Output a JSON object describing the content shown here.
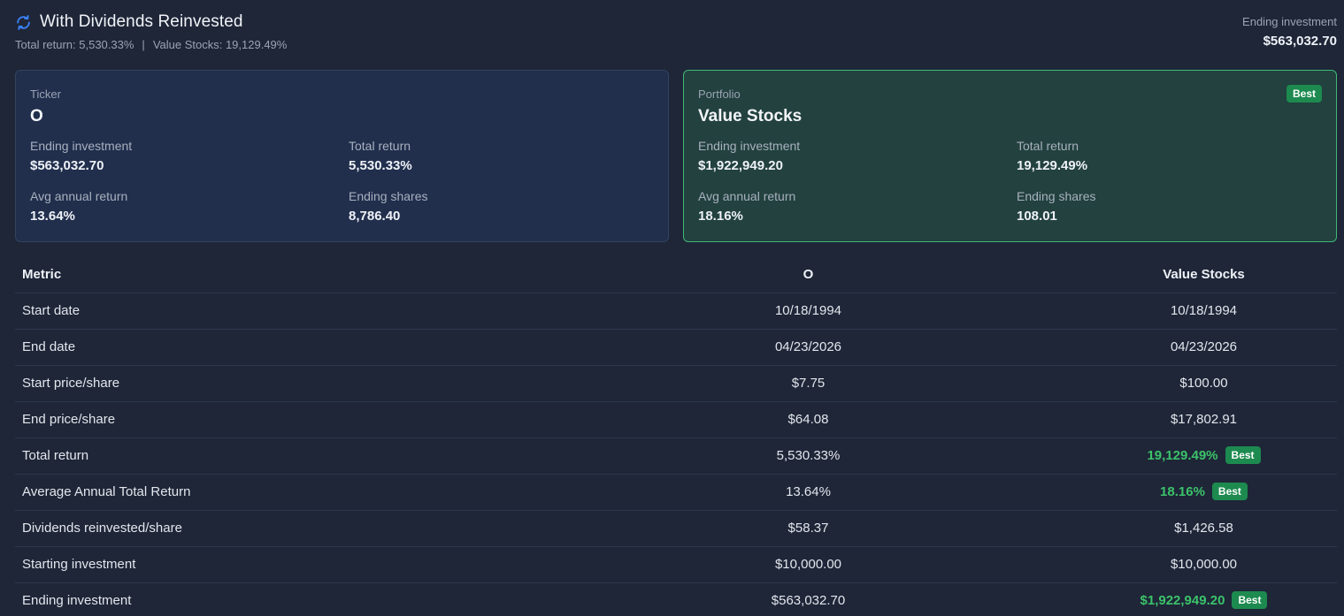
{
  "header": {
    "title": "With Dividends Reinvested",
    "total_return_text": "Total return: 5,530.33%",
    "separator": "|",
    "portfolio_return_text": "Value Stocks: 19,129.49%",
    "ending_label": "Ending investment",
    "ending_value": "$563,032.70",
    "icon": "refresh-icon",
    "accent_color": "#3b82f6"
  },
  "cards": {
    "ticker": {
      "kind": "Ticker",
      "name": "O",
      "ending_investment_label": "Ending investment",
      "ending_investment": "$563,032.70",
      "total_return_label": "Total return",
      "total_return": "5,530.33%",
      "avg_annual_label": "Avg annual return",
      "avg_annual": "13.64%",
      "ending_shares_label": "Ending shares",
      "ending_shares": "8,786.40"
    },
    "portfolio": {
      "kind": "Portfolio",
      "name": "Value Stocks",
      "badge": "Best",
      "ending_investment_label": "Ending investment",
      "ending_investment": "$1,922,949.20",
      "total_return_label": "Total return",
      "total_return": "19,129.49%",
      "avg_annual_label": "Avg annual return",
      "avg_annual": "18.16%",
      "ending_shares_label": "Ending shares",
      "ending_shares": "108.01",
      "border_color": "#3fb875"
    }
  },
  "table": {
    "headers": [
      "Metric",
      "O",
      "Value Stocks"
    ],
    "best_label": "Best",
    "best_color": "#3cc26a",
    "rows": [
      {
        "metric": "Start date",
        "o": "10/18/1994",
        "v": "10/18/1994",
        "best": ""
      },
      {
        "metric": "End date",
        "o": "04/23/2026",
        "v": "04/23/2026",
        "best": ""
      },
      {
        "metric": "Start price/share",
        "o": "$7.75",
        "v": "$100.00",
        "best": ""
      },
      {
        "metric": "End price/share",
        "o": "$64.08",
        "v": "$17,802.91",
        "best": ""
      },
      {
        "metric": "Total return",
        "o": "5,530.33%",
        "v": "19,129.49%",
        "best": "v"
      },
      {
        "metric": "Average Annual Total Return",
        "o": "13.64%",
        "v": "18.16%",
        "best": "v"
      },
      {
        "metric": "Dividends reinvested/share",
        "o": "$58.37",
        "v": "$1,426.58",
        "best": ""
      },
      {
        "metric": "Starting investment",
        "o": "$10,000.00",
        "v": "$10,000.00",
        "best": ""
      },
      {
        "metric": "Ending investment",
        "o": "$563,032.70",
        "v": "$1,922,949.20",
        "best": "v"
      }
    ]
  }
}
